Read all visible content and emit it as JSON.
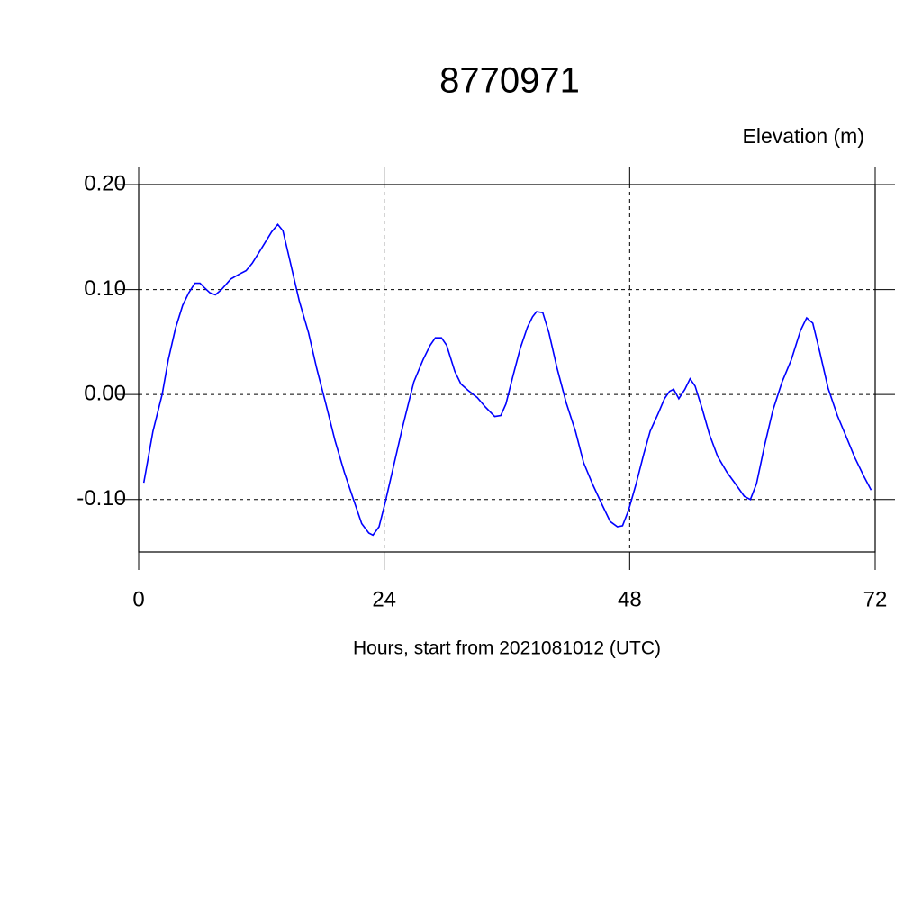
{
  "chart_data": {
    "type": "line",
    "title": "8770971",
    "ylabel": "Elevation (m)",
    "xlabel": "Hours, start from 2021081012 (UTC)",
    "xlim": [
      0,
      72
    ],
    "xticks": [
      0,
      24,
      48,
      72
    ],
    "ylim": [
      -0.15,
      0.2
    ],
    "yticks": [
      {
        "value": 0.2,
        "label": "0.20"
      },
      {
        "value": 0.1,
        "label": "0.10"
      },
      {
        "value": 0,
        "label": "0.00"
      },
      {
        "value": -0.1,
        "label": "-0.10"
      }
    ],
    "grid": true,
    "series": [
      {
        "color": "#0000ff",
        "x": [
          0.5,
          1.4,
          2.3,
          2.9,
          3.6,
          4.3,
          4.9,
          5.5,
          6.0,
          6.4,
          6.95,
          7.5,
          8.1,
          9.0,
          9.9,
          10.5,
          11.1,
          12.0,
          13.0,
          13.6,
          14.1,
          14.8,
          15.7,
          16.6,
          17.4,
          18.3,
          19.2,
          20.1,
          21.0,
          21.8,
          22.5,
          22.9,
          23.5,
          24.1,
          24.9,
          25.8,
          26.9,
          27.8,
          28.5,
          29.0,
          29.6,
          30.1,
          30.9,
          31.5,
          32.2,
          33.1,
          33.9,
          34.8,
          35.4,
          35.9,
          36.6,
          37.3,
          38.0,
          38.5,
          38.9,
          39.5,
          40.1,
          40.9,
          41.8,
          42.7,
          43.5,
          44.4,
          45.3,
          46.1,
          46.8,
          47.3,
          47.9,
          48.6,
          49.4,
          50.0,
          50.8,
          51.4,
          51.9,
          52.3,
          52.8,
          53.4,
          53.9,
          54.4,
          55.1,
          55.8,
          56.6,
          57.5,
          58.4,
          59.2,
          59.8,
          60.4,
          61.2,
          62.0,
          62.9,
          63.8,
          64.7,
          65.3,
          65.9,
          66.6,
          67.4,
          68.3,
          69.2,
          70.0,
          70.9,
          71.6
        ],
        "values": [
          -0.084,
          -0.035,
          0.0,
          0.033,
          0.063,
          0.085,
          0.097,
          0.106,
          0.106,
          0.102,
          0.097,
          0.095,
          0.1,
          0.11,
          0.115,
          0.118,
          0.125,
          0.139,
          0.155,
          0.162,
          0.156,
          0.127,
          0.089,
          0.059,
          0.025,
          -0.009,
          -0.044,
          -0.074,
          -0.1,
          -0.123,
          -0.132,
          -0.134,
          -0.126,
          -0.103,
          -0.069,
          -0.031,
          0.012,
          0.033,
          0.047,
          0.054,
          0.054,
          0.047,
          0.022,
          0.01,
          0.004,
          -0.003,
          -0.012,
          -0.021,
          -0.02,
          -0.009,
          0.018,
          0.044,
          0.064,
          0.074,
          0.079,
          0.078,
          0.059,
          0.025,
          -0.008,
          -0.035,
          -0.065,
          -0.086,
          -0.105,
          -0.121,
          -0.126,
          -0.125,
          -0.11,
          -0.086,
          -0.056,
          -0.035,
          -0.018,
          -0.004,
          0.003,
          0.005,
          -0.004,
          0.005,
          0.015,
          0.008,
          -0.014,
          -0.038,
          -0.059,
          -0.074,
          -0.086,
          -0.097,
          -0.1,
          -0.085,
          -0.048,
          -0.015,
          0.012,
          0.033,
          0.061,
          0.073,
          0.068,
          0.04,
          0.006,
          -0.02,
          -0.041,
          -0.06,
          -0.078,
          -0.091
        ]
      }
    ]
  }
}
